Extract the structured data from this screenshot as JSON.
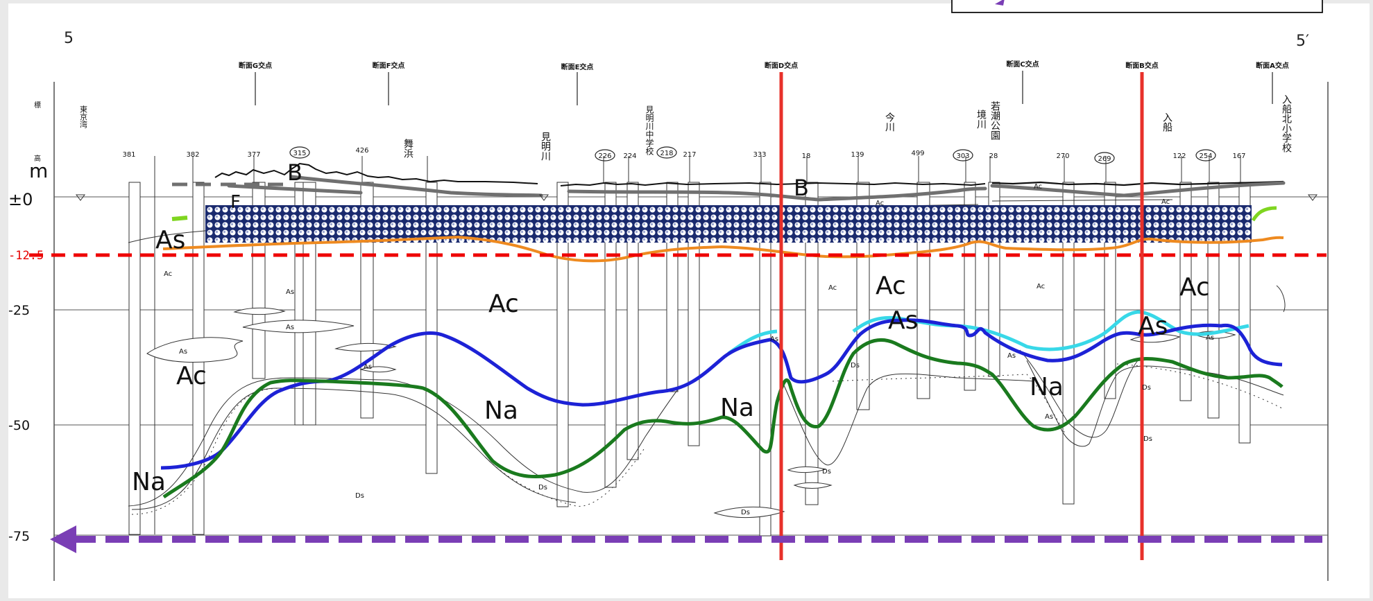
{
  "corner_labels": {
    "left": "5",
    "right": "5′"
  },
  "axis": {
    "unit": "m",
    "side_label": "標 高",
    "ticks": [
      "±0",
      "-12.5",
      "-25",
      "-50",
      "-75"
    ],
    "ticks_values": [
      0,
      -12.5,
      -25,
      -50,
      -75
    ]
  },
  "section_markers": [
    "断面G交点",
    "断面F交点",
    "断面E交点",
    "断面D交点",
    "断面C交点",
    "断面B交点",
    "断面A交点"
  ],
  "boreholes": [
    "381",
    "382",
    "377",
    "315",
    "426",
    "226",
    "224",
    "218",
    "217",
    "333",
    "18",
    "139",
    "499",
    "303",
    "28",
    "270",
    "269",
    "122",
    "254",
    "167"
  ],
  "places": [
    "東京湾",
    "舞浜",
    "見明川",
    "見明川中学校",
    "今川",
    "境川",
    "若潮公園",
    "入船",
    "入船北小学校"
  ],
  "geology_labels": {
    "large": [
      "As",
      "Ac",
      "Ac",
      "Na",
      "Na",
      "Na",
      "Ac",
      "As",
      "Na",
      "Ac",
      "As",
      "B",
      "B",
      "F"
    ],
    "small": [
      "Ac",
      "As",
      "As",
      "As",
      "As",
      "Ds",
      "Ds",
      "Ds",
      "Ds",
      "Ac",
      "Ac",
      "Ac",
      "As",
      "Ds",
      "As",
      "As",
      "Ds",
      "Ds",
      "Ac",
      "As",
      "Ac"
    ]
  },
  "colors": {
    "red_line": "#e8302a",
    "red_dashed": "#ee0000",
    "purple": "#7a3eb5",
    "blue": "#1d22d6",
    "cyan": "#38d8e8",
    "green": "#1a7a1e",
    "orange": "#ee8a20",
    "gray": "#707070",
    "pattern": "#1a2a6e",
    "lime": "#7fd520"
  }
}
